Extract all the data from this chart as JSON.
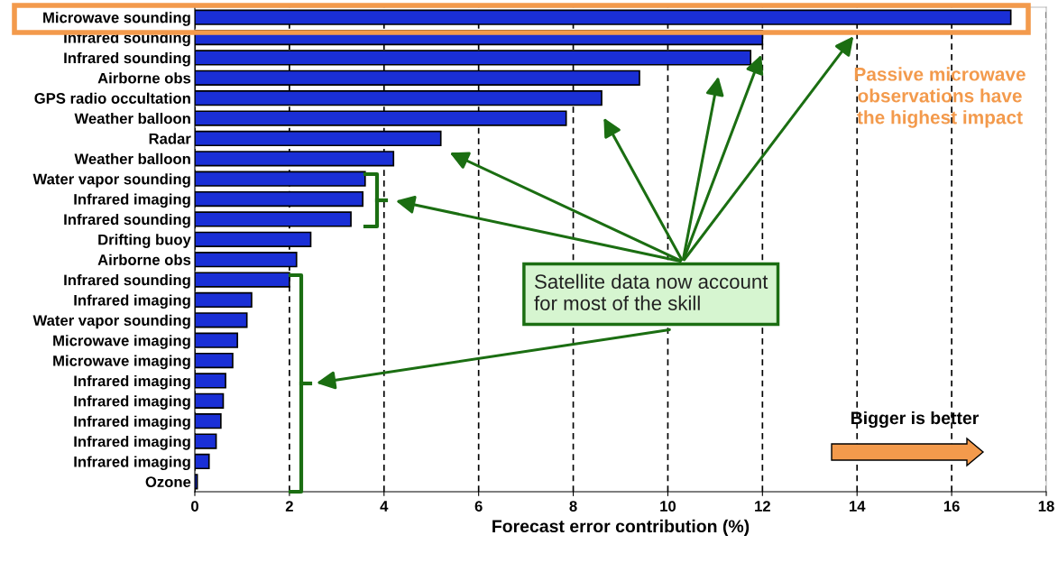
{
  "chart_data": {
    "type": "bar",
    "orientation": "horizontal",
    "xlabel": "Forecast error contribution (%)",
    "categories": [
      "Microwave sounding",
      "Infrared sounding",
      "Infrared sounding",
      "Airborne obs",
      "GPS radio occultation",
      "Weather balloon",
      "Radar",
      "Weather balloon",
      "Water vapor sounding",
      "Infrared imaging",
      "Infrared sounding",
      "Drifting buoy",
      "Airborne obs",
      "Infrared sounding",
      "Infrared imaging",
      "Water vapor sounding",
      "Microwave imaging",
      "Microwave imaging",
      "Infrared imaging",
      "Infrared imaging",
      "Infrared imaging",
      "Infrared imaging",
      "Infrared imaging",
      "Ozone"
    ],
    "values": [
      17.25,
      12.0,
      11.75,
      9.4,
      8.6,
      7.85,
      5.2,
      4.2,
      3.6,
      3.55,
      3.3,
      2.45,
      2.15,
      2.0,
      1.2,
      1.1,
      0.9,
      0.8,
      0.65,
      0.6,
      0.55,
      0.45,
      0.3,
      0.05
    ],
    "color": "#1a2fd6",
    "xlim": [
      0,
      18
    ],
    "xticks": [
      0,
      2,
      4,
      6,
      8,
      10,
      12,
      14,
      16,
      18
    ],
    "grid": "x",
    "annotations": [
      "Satellite data now account\nfor most of the skill",
      "Passive microwave\nobservations have\nthe highest impact",
      "Bigger is better"
    ]
  }
}
